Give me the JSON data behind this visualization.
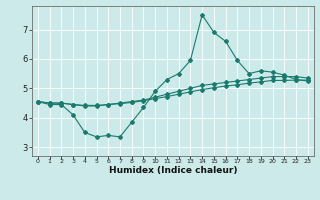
{
  "xlabel": "Humidex (Indice chaleur)",
  "bg_color": "#cceaea",
  "line_color": "#1a7a6e",
  "grid_color": "#ffffff",
  "xlim": [
    -0.5,
    23.5
  ],
  "ylim": [
    2.7,
    7.8
  ],
  "xticks": [
    0,
    1,
    2,
    3,
    4,
    5,
    6,
    7,
    8,
    9,
    10,
    11,
    12,
    13,
    14,
    15,
    16,
    17,
    18,
    19,
    20,
    21,
    22,
    23
  ],
  "yticks": [
    3,
    4,
    5,
    6,
    7
  ],
  "line1_x": [
    0,
    1,
    2,
    3,
    4,
    5,
    6,
    7,
    8,
    9,
    10,
    11,
    12,
    13,
    14,
    15,
    16,
    17,
    18,
    19,
    20,
    21,
    22,
    23
  ],
  "line1_y": [
    4.55,
    4.45,
    4.45,
    4.1,
    3.5,
    3.35,
    3.4,
    3.35,
    3.85,
    4.35,
    4.9,
    5.3,
    5.5,
    5.95,
    7.5,
    6.9,
    6.6,
    5.95,
    5.5,
    5.6,
    5.55,
    5.45,
    5.3,
    5.25
  ],
  "line2_x": [
    0,
    1,
    2,
    3,
    4,
    5,
    6,
    7,
    8,
    9,
    10,
    11,
    12,
    13,
    14,
    15,
    16,
    17,
    18,
    19,
    20,
    21,
    22,
    23
  ],
  "line2_y": [
    4.55,
    4.5,
    4.5,
    4.45,
    4.4,
    4.4,
    4.45,
    4.5,
    4.55,
    4.6,
    4.7,
    4.8,
    4.9,
    5.0,
    5.1,
    5.15,
    5.2,
    5.25,
    5.3,
    5.35,
    5.4,
    5.4,
    5.4,
    5.35
  ],
  "line3_x": [
    0,
    1,
    2,
    3,
    4,
    5,
    6,
    7,
    8,
    9,
    10,
    11,
    12,
    13,
    14,
    15,
    16,
    17,
    18,
    19,
    20,
    21,
    22,
    23
  ],
  "line3_y": [
    4.55,
    4.5,
    4.5,
    4.45,
    4.42,
    4.42,
    4.45,
    4.48,
    4.52,
    4.58,
    4.65,
    4.72,
    4.8,
    4.88,
    4.96,
    5.02,
    5.08,
    5.12,
    5.18,
    5.22,
    5.27,
    5.27,
    5.28,
    5.28
  ],
  "marker_size": 2.0,
  "linewidth": 0.8,
  "xlabel_fontsize": 6.5,
  "tick_fontsize_x": 4.5,
  "tick_fontsize_y": 6.0
}
